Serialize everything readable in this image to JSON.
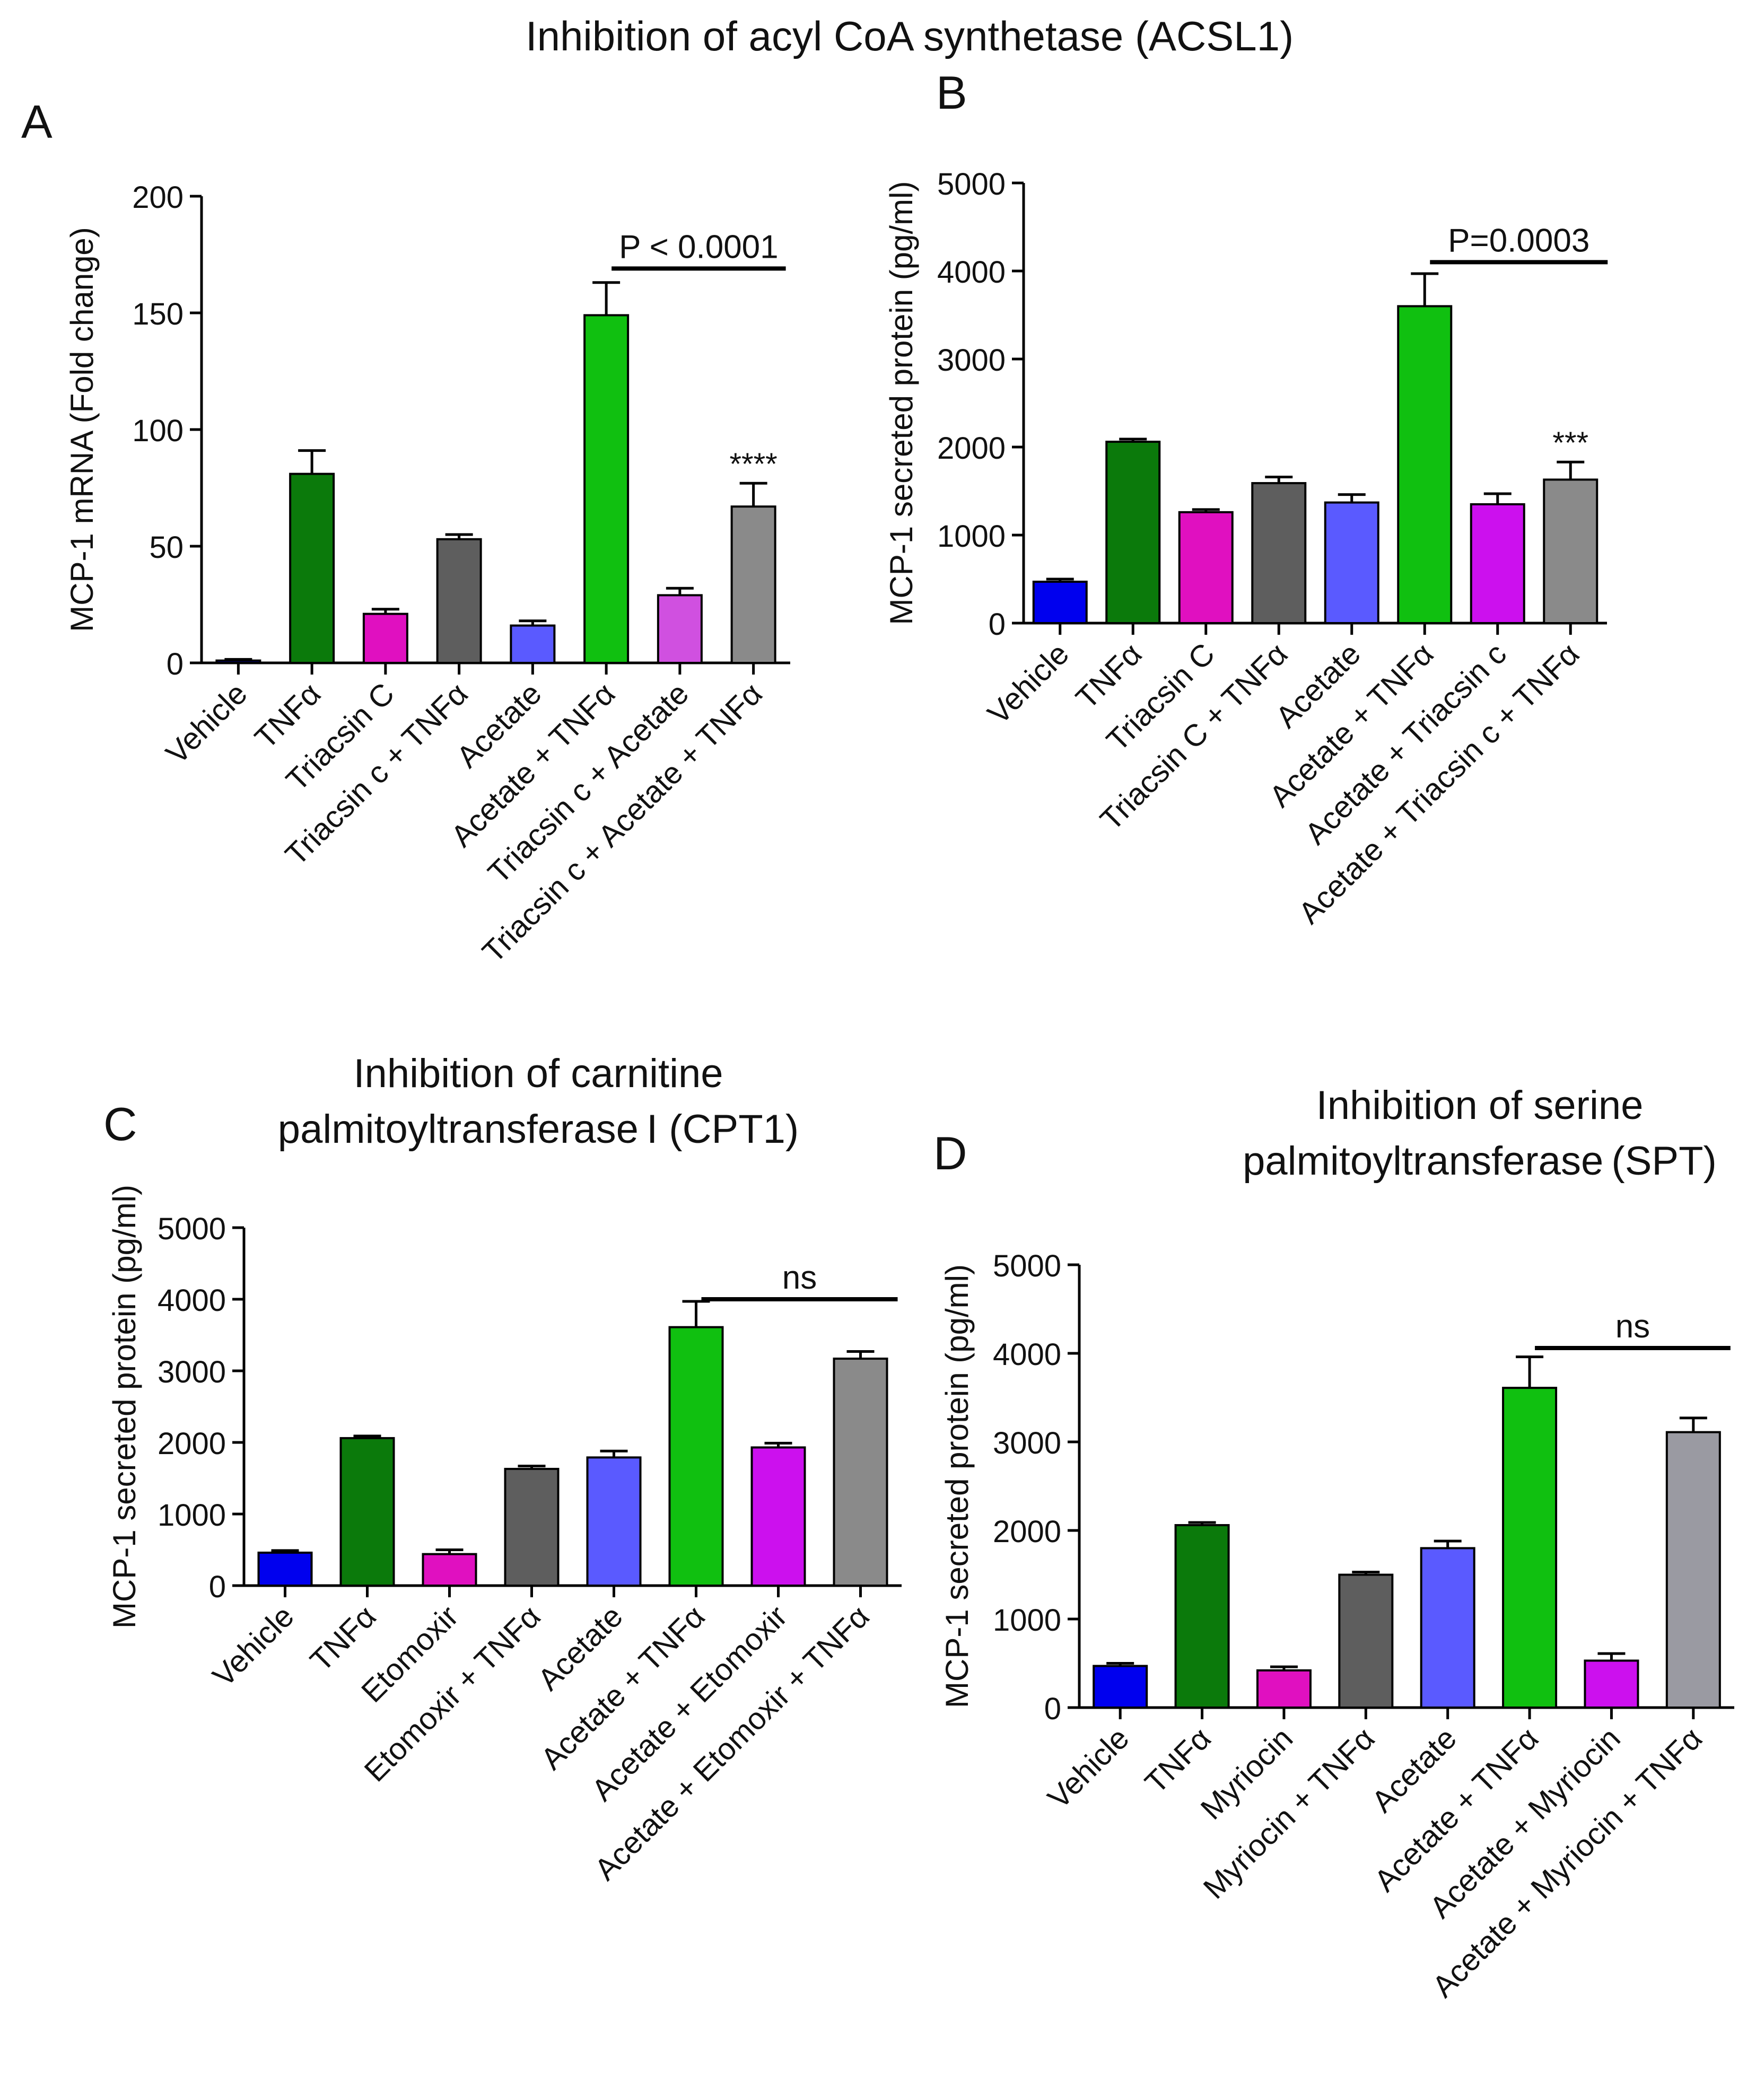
{
  "figure": {
    "main_title": "Inhibition of  acyl CoA synthetase (ACSL1)"
  },
  "chart_data": [
    {
      "panel": "A",
      "type": "bar",
      "title": "",
      "ylabel": "MCP-1 mRNA (Fold change)",
      "ylim": [
        0,
        200
      ],
      "yticks": [
        "0",
        "50",
        "100",
        "150",
        "200"
      ],
      "categories": [
        "Vehicle",
        "TNFα",
        "Triacsin C",
        "Triacsin c + TNFα",
        "Acetate",
        "Acetate + TNFα",
        "Triacsin c +  Acetate",
        "Triacsin c +  Acetate + TNFα"
      ],
      "values": [
        1,
        81,
        21,
        53,
        16,
        149,
        29,
        67
      ],
      "errors": [
        0.5,
        10,
        2,
        2,
        2,
        14,
        3,
        10
      ],
      "colors": [
        "#0000ee",
        "#0b7a0b",
        "#e010c0",
        "#5e5e5e",
        "#5a5aff",
        "#10c010",
        "#d050e0",
        "#8a8a8a"
      ],
      "bracket": {
        "from": 5,
        "to": 7,
        "label": "P < 0.0001",
        "value": 169
      },
      "annotations": [
        {
          "index": 7,
          "text": "****"
        }
      ]
    },
    {
      "panel": "B",
      "type": "bar",
      "title": "",
      "ylabel": "MCP-1  secreted  protein (pg/ml)",
      "ylim": [
        0,
        5000
      ],
      "yticks": [
        "0",
        "1000",
        "2000",
        "3000",
        "4000",
        "5000"
      ],
      "categories": [
        "Vehicle",
        "TNFα",
        "Triacsin C",
        "Triacsin C + TNFα",
        "Acetate",
        "Acetate + TNFα",
        "Acetate + Triacsin c",
        "Acetate + Triacsin c + TNFα"
      ],
      "values": [
        470,
        2060,
        1260,
        1590,
        1370,
        3600,
        1350,
        1630
      ],
      "errors": [
        30,
        30,
        30,
        70,
        90,
        370,
        120,
        200
      ],
      "colors": [
        "#0000ee",
        "#0b7a0b",
        "#e010c0",
        "#5e5e5e",
        "#5a5aff",
        "#10c010",
        "#cc10ee",
        "#8a8a8a"
      ],
      "bracket": {
        "from": 5,
        "to": 7,
        "label": "P=0.0003",
        "value": 4100
      },
      "annotations": [
        {
          "index": 7,
          "text": "***"
        }
      ]
    },
    {
      "panel": "C",
      "type": "bar",
      "title": "Inhibition of carnitine\npalmitoyltransferase I (CPT1)",
      "ylabel": "MCP-1  secreted  protein (pg/ml)",
      "ylim": [
        0,
        5000
      ],
      "yticks": [
        "0",
        "1000",
        "2000",
        "3000",
        "4000",
        "5000"
      ],
      "categories": [
        "Vehicle",
        "TNFα",
        "Etomoxir",
        "Etomoxir + TNFα",
        "Acetate",
        "Acetate + TNFα",
        "Acetate + Etomoxir",
        "Acetate + Etomoxir + TNFα"
      ],
      "values": [
        460,
        2060,
        440,
        1630,
        1790,
        3610,
        1930,
        3170
      ],
      "errors": [
        30,
        30,
        60,
        40,
        90,
        360,
        60,
        100
      ],
      "colors": [
        "#0000ee",
        "#0b7a0b",
        "#e010c0",
        "#5e5e5e",
        "#5a5aff",
        "#10c010",
        "#cc10ee",
        "#8a8a8a"
      ],
      "bracket": {
        "from": 5,
        "to": 7,
        "label": "ns",
        "value": 4000
      },
      "annotations": []
    },
    {
      "panel": "D",
      "type": "bar",
      "title": "Inhibition of serine\npalmitoyltransferase (SPT)",
      "ylabel": "MCP-1  secreted  protein (pg/ml)",
      "ylim": [
        0,
        5000
      ],
      "yticks": [
        "0",
        "1000",
        "2000",
        "3000",
        "4000",
        "5000"
      ],
      "categories": [
        "Vehicle",
        "TNFα",
        "Myriocin",
        "Myriocin + TNFα",
        "Acetate",
        "Acetate + TNFα",
        "Acetate + Myriocin",
        "Acetate + Myriocin + TNFα"
      ],
      "values": [
        470,
        2060,
        420,
        1500,
        1800,
        3610,
        530,
        3110
      ],
      "errors": [
        30,
        30,
        40,
        30,
        80,
        350,
        80,
        160
      ],
      "colors": [
        "#0000ee",
        "#0b7a0b",
        "#e010c0",
        "#5e5e5e",
        "#5a5aff",
        "#10c010",
        "#cc10ee",
        "#9a9aa2"
      ],
      "bracket": {
        "from": 5,
        "to": 7,
        "label": "ns",
        "value": 4060
      },
      "annotations": []
    }
  ]
}
